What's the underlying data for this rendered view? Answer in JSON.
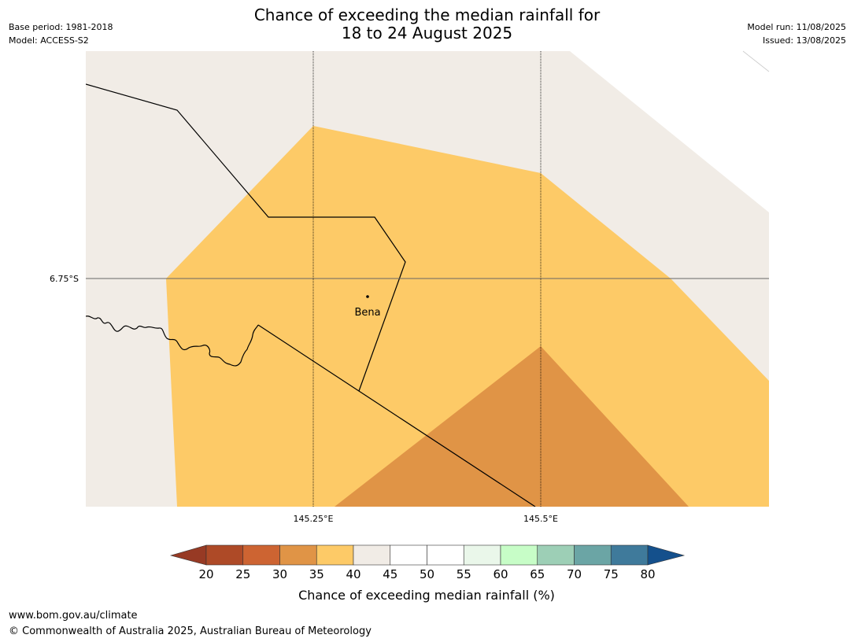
{
  "header": {
    "title_line1": "Chance of exceeding the median rainfall for",
    "title_line2": "18 to 24 August 2025",
    "base_period": "Base period: 1981-2018",
    "model": "Model: ACCESS-S2",
    "model_run": "Model run: 11/08/2025",
    "issued": "Issued: 13/08/2025"
  },
  "map": {
    "lat_label": "6.75°S",
    "lon_labels": [
      "145.25°E",
      "145.5°E"
    ],
    "place": "Bena",
    "colors": {
      "band_40_45": "#f1ece6",
      "band_35_40": "#fdca67",
      "band_30_35": "#e09446",
      "boundary": "#000000"
    }
  },
  "colorbar": {
    "label": "Chance of exceeding median rainfall (%)",
    "ticks": [
      "20",
      "25",
      "30",
      "35",
      "40",
      "45",
      "50",
      "55",
      "60",
      "65",
      "70",
      "75",
      "80"
    ],
    "low_extend_color": "#973a24",
    "high_extend_color": "#14508c",
    "colors": [
      "#ae4a27",
      "#cd6432",
      "#e09446",
      "#fdca67",
      "#f1ece6",
      "#ffffff",
      "#ffffff",
      "#eaf7ea",
      "#c7fdc7",
      "#9dcfb6",
      "#6ba5a5",
      "#3f7a9b"
    ]
  },
  "footer": {
    "url": "www.bom.gov.au/climate",
    "copyright": "© Commonwealth of Australia 2025, Australian Bureau of Meteorology"
  }
}
